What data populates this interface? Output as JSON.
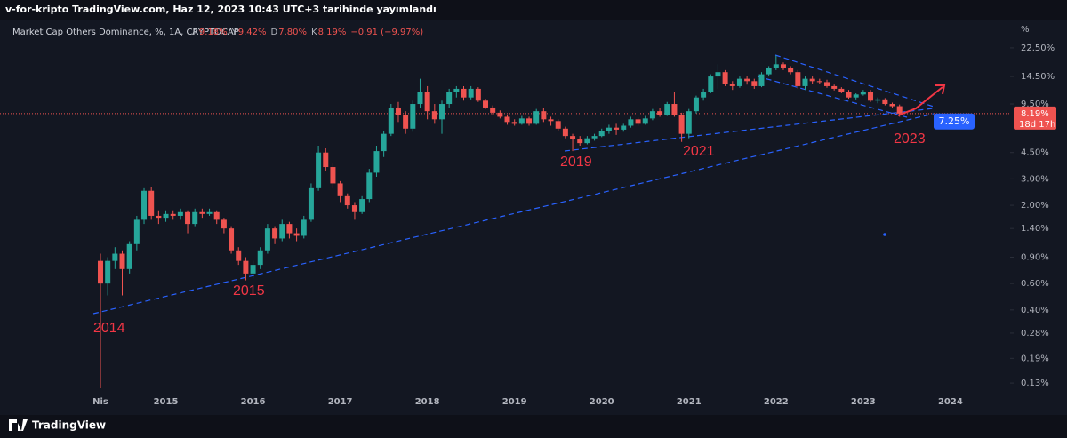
{
  "header": {
    "publisher": "v-for-kripto TradingView.com, Haz 12, 2023 10:43 UTC+3 tarihinde yayımlandı",
    "symbol": "Market Cap Others Dominance, %, 1A, CRYPTOCAP",
    "ohlc_legend": [
      {
        "key": "A",
        "value": "9.18%"
      },
      {
        "key": "Y",
        "value": "9.42%"
      },
      {
        "key": "D",
        "value": "7.80%"
      },
      {
        "key": "K",
        "value": "8.19%"
      }
    ],
    "change": "−0.91 (−9.97%)"
  },
  "footer": {
    "brand": "TradingView"
  },
  "chart_data": {
    "type": "candlestick",
    "log_scale": true,
    "axis_unit": "%",
    "up_color": "#26a69a",
    "down_color": "#ef5350",
    "trendline_color": "#2962ff",
    "categories": [
      "Nis",
      null,
      null,
      null,
      null,
      null,
      null,
      null,
      null,
      "2015",
      null,
      null,
      null,
      null,
      null,
      null,
      null,
      null,
      null,
      null,
      null,
      "2016",
      null,
      null,
      null,
      null,
      null,
      null,
      null,
      null,
      null,
      null,
      null,
      "2017",
      null,
      null,
      null,
      null,
      null,
      null,
      null,
      null,
      null,
      null,
      null,
      "2018",
      null,
      null,
      null,
      null,
      null,
      null,
      null,
      null,
      null,
      null,
      null,
      "2019",
      null,
      null,
      null,
      null,
      null,
      null,
      null,
      null,
      null,
      null,
      null,
      "2020",
      null,
      null,
      null,
      null,
      null,
      null,
      null,
      null,
      null,
      null,
      null,
      "2021",
      null,
      null,
      null,
      null,
      null,
      null,
      null,
      null,
      null,
      null,
      null,
      "2022",
      null,
      null,
      null,
      null,
      null,
      null,
      null,
      null,
      null,
      null,
      null,
      "2023",
      null,
      null,
      null,
      null,
      null,
      null,
      null,
      null,
      null,
      null,
      null,
      "2024"
    ],
    "candles": [
      [
        0.85,
        0.95,
        0.12,
        0.6
      ],
      [
        0.6,
        0.9,
        0.5,
        0.85
      ],
      [
        0.85,
        1.05,
        0.75,
        0.95
      ],
      [
        0.95,
        1.0,
        0.5,
        0.75
      ],
      [
        0.75,
        1.15,
        0.7,
        1.1
      ],
      [
        1.1,
        1.7,
        1.0,
        1.6
      ],
      [
        1.6,
        2.6,
        1.5,
        2.5
      ],
      [
        2.5,
        2.65,
        1.6,
        1.7
      ],
      [
        1.7,
        1.85,
        1.5,
        1.65
      ],
      [
        1.65,
        1.85,
        1.55,
        1.75
      ],
      [
        1.75,
        1.85,
        1.6,
        1.7
      ],
      [
        1.7,
        1.9,
        1.6,
        1.8
      ],
      [
        1.8,
        1.85,
        1.3,
        1.5
      ],
      [
        1.5,
        1.9,
        1.45,
        1.8
      ],
      [
        1.8,
        1.9,
        1.65,
        1.75
      ],
      [
        1.75,
        1.9,
        1.7,
        1.8
      ],
      [
        1.8,
        1.85,
        1.5,
        1.6
      ],
      [
        1.6,
        1.65,
        1.3,
        1.4
      ],
      [
        1.4,
        1.45,
        0.95,
        1.0
      ],
      [
        1.0,
        1.05,
        0.8,
        0.85
      ],
      [
        0.85,
        0.9,
        0.63,
        0.7
      ],
      [
        0.7,
        0.85,
        0.65,
        0.8
      ],
      [
        0.8,
        1.05,
        0.75,
        1.0
      ],
      [
        1.0,
        1.5,
        0.95,
        1.4
      ],
      [
        1.4,
        1.45,
        1.1,
        1.2
      ],
      [
        1.2,
        1.6,
        1.15,
        1.5
      ],
      [
        1.5,
        1.55,
        1.2,
        1.3
      ],
      [
        1.3,
        1.4,
        1.15,
        1.25
      ],
      [
        1.25,
        1.7,
        1.2,
        1.6
      ],
      [
        1.6,
        2.8,
        1.55,
        2.6
      ],
      [
        2.6,
        5.0,
        2.5,
        4.5
      ],
      [
        4.5,
        4.8,
        3.4,
        3.6
      ],
      [
        3.6,
        3.8,
        2.6,
        2.8
      ],
      [
        2.8,
        2.9,
        2.1,
        2.3
      ],
      [
        2.3,
        2.4,
        1.9,
        2.0
      ],
      [
        2.0,
        2.1,
        1.6,
        1.8
      ],
      [
        1.8,
        2.3,
        1.75,
        2.2
      ],
      [
        2.2,
        3.5,
        2.1,
        3.3
      ],
      [
        3.3,
        5.0,
        3.1,
        4.6
      ],
      [
        4.6,
        6.3,
        4.2,
        6.0
      ],
      [
        6.0,
        9.5,
        5.8,
        9.0
      ],
      [
        9.0,
        9.8,
        7.2,
        8.0
      ],
      [
        8.0,
        8.5,
        6.0,
        6.5
      ],
      [
        6.5,
        10,
        6.2,
        9.5
      ],
      [
        9.5,
        14,
        9.0,
        11.5
      ],
      [
        11.5,
        12.5,
        7.5,
        8.5
      ],
      [
        8.5,
        9.5,
        7.0,
        7.5
      ],
      [
        7.5,
        10,
        6.0,
        9.5
      ],
      [
        9.5,
        12,
        9.0,
        11.5
      ],
      [
        11.5,
        12.5,
        10.5,
        12.0
      ],
      [
        12,
        12.5,
        10,
        10.5
      ],
      [
        10.5,
        12.5,
        10.2,
        12
      ],
      [
        12,
        12.3,
        9.8,
        10
      ],
      [
        10,
        10.3,
        8.8,
        9
      ],
      [
        9,
        9.3,
        8.0,
        8.3
      ],
      [
        8.3,
        8.6,
        7.6,
        7.8
      ],
      [
        7.8,
        8.0,
        6.9,
        7.2
      ],
      [
        7.2,
        7.5,
        6.8,
        7.0
      ],
      [
        7.0,
        7.9,
        6.9,
        7.6
      ],
      [
        7.6,
        7.8,
        6.8,
        7.0
      ],
      [
        7.0,
        8.8,
        6.9,
        8.5
      ],
      [
        8.5,
        8.9,
        7.2,
        7.5
      ],
      [
        7.5,
        7.8,
        6.8,
        7.3
      ],
      [
        7.3,
        7.5,
        6.3,
        6.5
      ],
      [
        6.5,
        6.7,
        5.6,
        5.8
      ],
      [
        5.8,
        6.0,
        4.6,
        5.5
      ],
      [
        5.5,
        5.8,
        5.0,
        5.2
      ],
      [
        5.2,
        5.8,
        5.1,
        5.6
      ],
      [
        5.6,
        6.0,
        5.4,
        5.8
      ],
      [
        5.8,
        6.5,
        5.7,
        6.3
      ],
      [
        6.3,
        6.9,
        6.0,
        6.6
      ],
      [
        6.6,
        7.0,
        5.9,
        6.4
      ],
      [
        6.4,
        7.0,
        6.2,
        6.8
      ],
      [
        6.8,
        7.8,
        6.6,
        7.5
      ],
      [
        7.5,
        7.7,
        6.8,
        7.0
      ],
      [
        7.0,
        7.9,
        6.9,
        7.6
      ],
      [
        7.6,
        8.8,
        7.4,
        8.5
      ],
      [
        8.5,
        8.9,
        7.8,
        8.0
      ],
      [
        8.0,
        9.8,
        7.9,
        9.5
      ],
      [
        9.5,
        11.5,
        7.8,
        8.0
      ],
      [
        8.0,
        8.3,
        5.3,
        6.0
      ],
      [
        6.0,
        8.8,
        5.6,
        8.5
      ],
      [
        8.5,
        10.8,
        8.2,
        10.5
      ],
      [
        10.5,
        12,
        10.0,
        11.5
      ],
      [
        11.5,
        15,
        11.2,
        14.5
      ],
      [
        14.5,
        17.5,
        12,
        15.5
      ],
      [
        15.5,
        16,
        12.5,
        13
      ],
      [
        13,
        13.5,
        11.8,
        12.5
      ],
      [
        12.5,
        14.5,
        12.2,
        14
      ],
      [
        14,
        14.5,
        12.8,
        13.5
      ],
      [
        13.5,
        14,
        12,
        12.5
      ],
      [
        12.5,
        15.5,
        12.3,
        15
      ],
      [
        15,
        17,
        14.5,
        16.5
      ],
      [
        16.5,
        20,
        16,
        17.5
      ],
      [
        17.5,
        18,
        16,
        16.5
      ],
      [
        16.5,
        17,
        15,
        15.5
      ],
      [
        15.5,
        16,
        12,
        12.5
      ],
      [
        12.5,
        14.5,
        11.8,
        14
      ],
      [
        14,
        14.5,
        13,
        13.5
      ],
      [
        13.5,
        14,
        13,
        13.3
      ],
      [
        13.3,
        13.8,
        12.2,
        12.5
      ],
      [
        12.5,
        12.8,
        11.7,
        12
      ],
      [
        12,
        12.3,
        11.2,
        11.5
      ],
      [
        11.5,
        11.8,
        10.3,
        10.5
      ],
      [
        10.5,
        11.2,
        10.2,
        11
      ],
      [
        11,
        11.8,
        10.8,
        11.5
      ],
      [
        11.5,
        11.8,
        9.8,
        10
      ],
      [
        10,
        10.5,
        9.6,
        10.2
      ],
      [
        10.2,
        10.4,
        9.3,
        9.5
      ],
      [
        9.5,
        9.7,
        9.0,
        9.18
      ],
      [
        9.18,
        9.42,
        7.8,
        8.19
      ],
      null,
      null,
      null,
      null,
      null,
      null,
      null
    ],
    "ylim": [
      0.112,
      31.2
    ],
    "yticks": [
      {
        "value": 0.13,
        "label": "0.13%"
      },
      {
        "value": 0.19,
        "label": "0.19%"
      },
      {
        "value": 0.28,
        "label": "0.28%"
      },
      {
        "value": 0.4,
        "label": "0.40%"
      },
      {
        "value": 0.6,
        "label": "0.60%"
      },
      {
        "value": 0.9,
        "label": "0.90%"
      },
      {
        "value": 1.4,
        "label": "1.40%"
      },
      {
        "value": 2,
        "label": "2.00%"
      },
      {
        "value": 3,
        "label": "3.00%"
      },
      {
        "value": 4.5,
        "label": "4.50%"
      },
      {
        "value": 9.5,
        "label": "9.50%"
      },
      {
        "value": 14.5,
        "label": "14.50%"
      },
      {
        "value": 22.5,
        "label": "22.50%"
      }
    ],
    "last_price": {
      "value": 8.19,
      "label": "8.19%"
    },
    "countdown": "18d 17h",
    "target_price": {
      "value": 7.25,
      "label": "7.25%"
    },
    "annotations": [
      "2014",
      "2015",
      "2019",
      "2021",
      "2023"
    ]
  }
}
